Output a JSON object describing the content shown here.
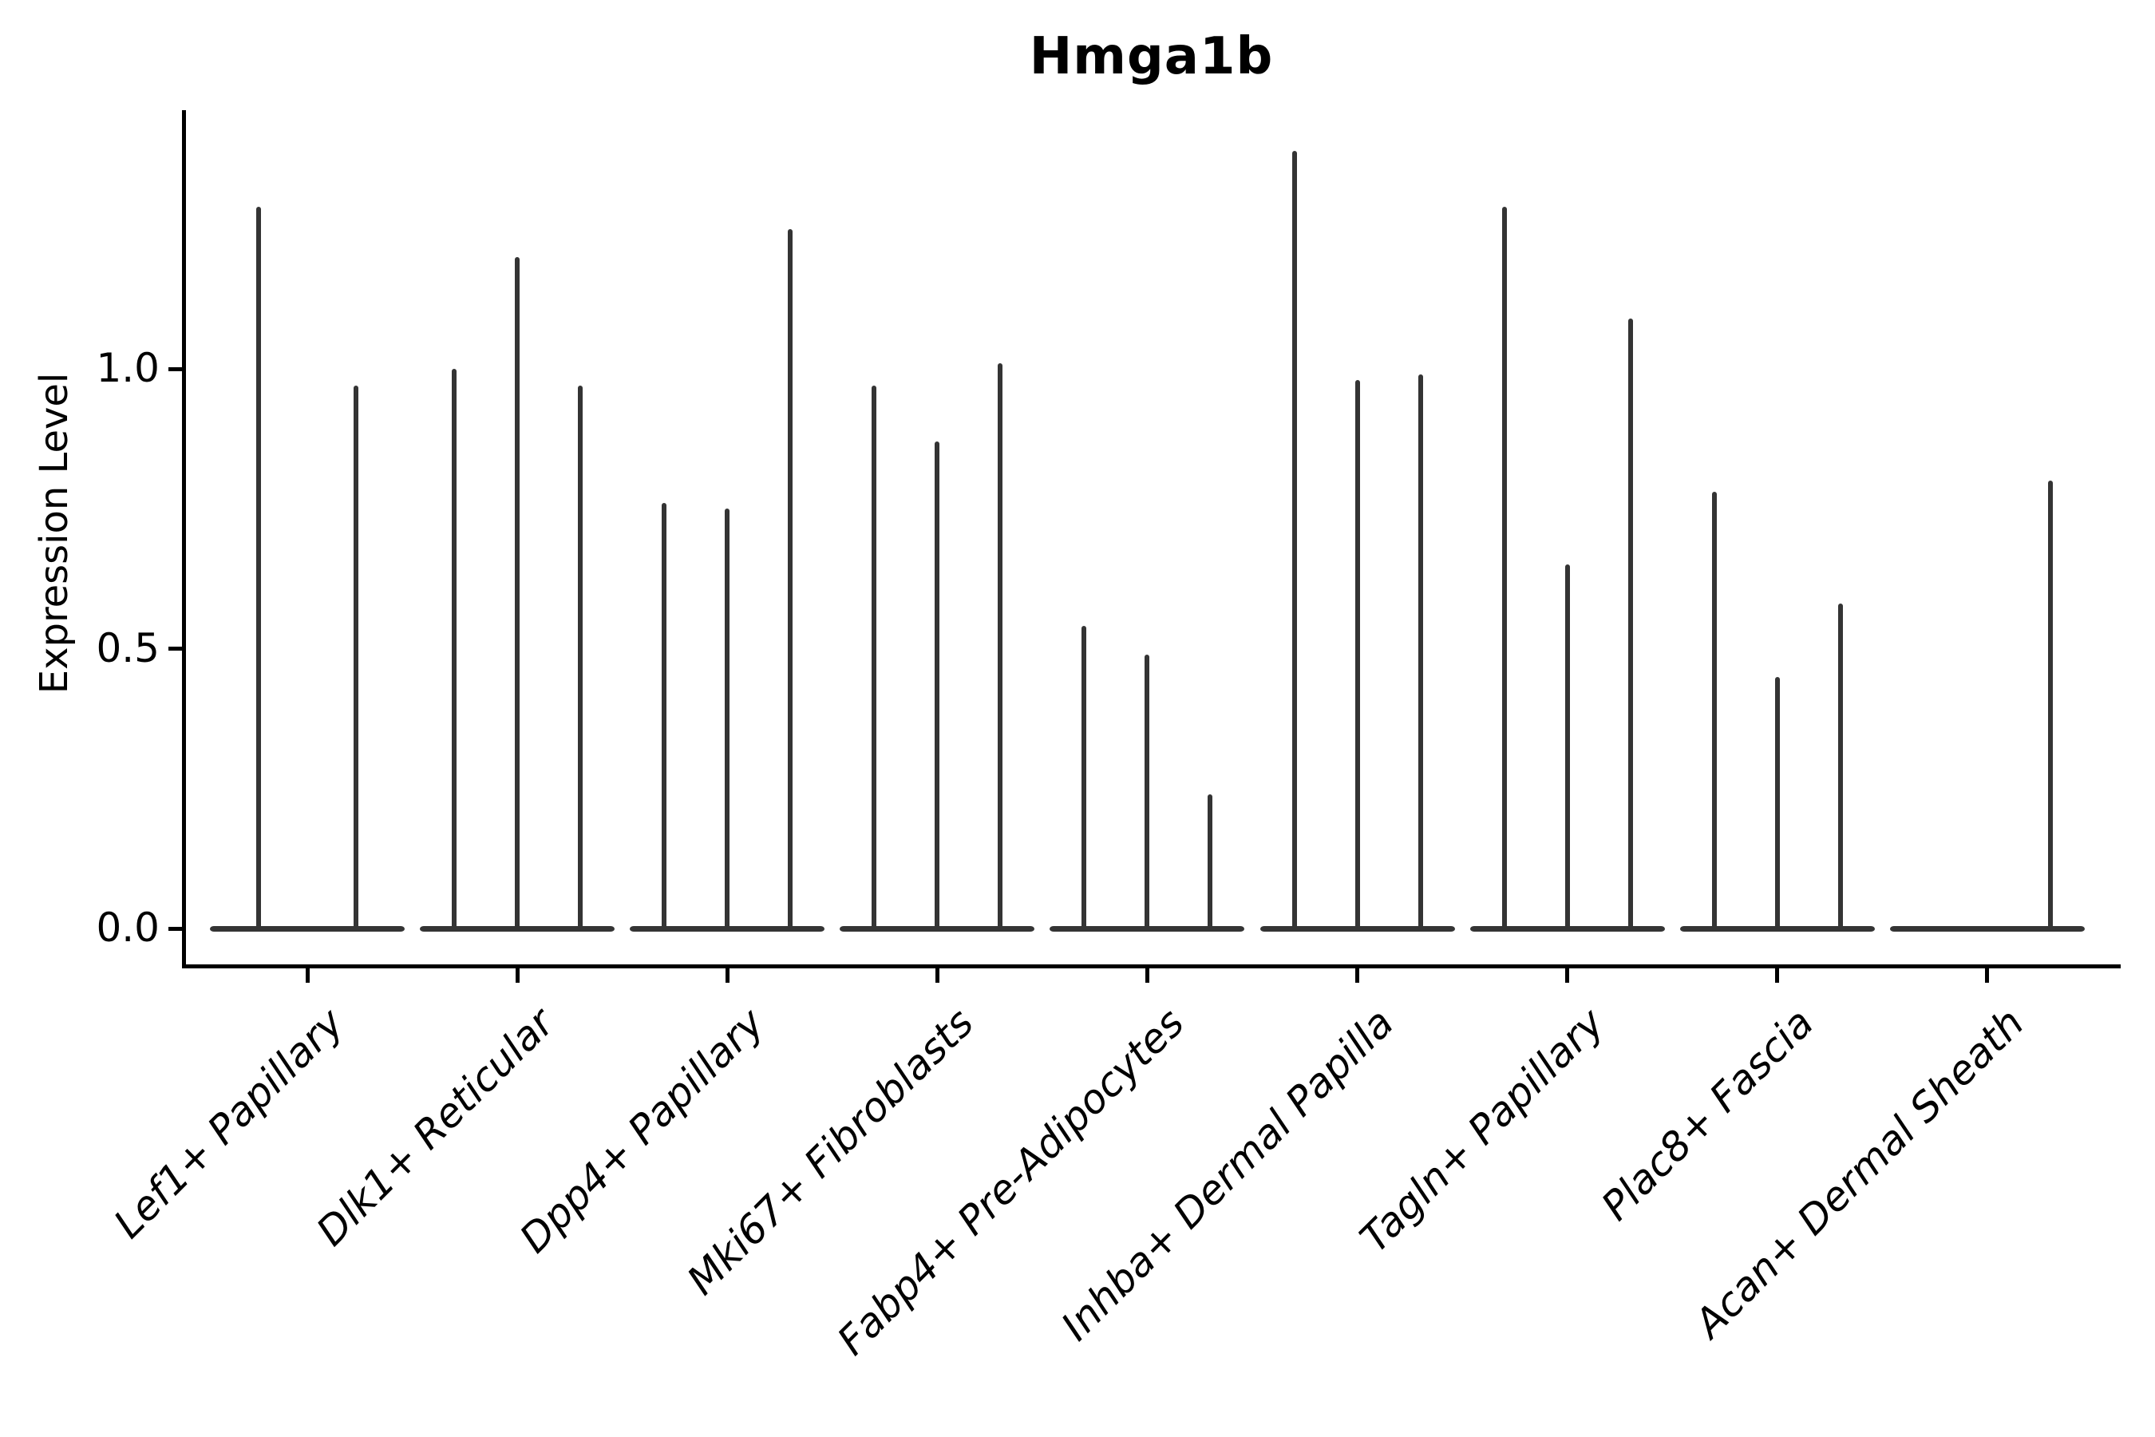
{
  "figure": {
    "background": "#ffffff"
  },
  "chart_data": {
    "type": "violin",
    "title": "Hmga1b",
    "xlabel": "",
    "ylabel": "Expression Level",
    "ylim": [
      -0.06,
      1.46
    ],
    "ytick_values": [
      0.0,
      0.5,
      1.0
    ],
    "ytick_labels": [
      "0.0",
      "0.5",
      "1.0"
    ],
    "grid": false,
    "legend": "none",
    "violin_color": "#343434",
    "axis_color": "#000000",
    "categories": [
      "Lef1+ Papillary",
      "Dlk1+ Reticular",
      "Dpp4+ Papillary",
      "Mki67+ Fibroblasts",
      "Fabp4+ Pre-Adipocytes",
      "Inhba+ Dermal Papilla",
      "Tagln+ Papillary",
      "Plac8+ Fascia",
      "Acan+ Dermal Sheath"
    ],
    "groups": [
      {
        "category": "Lef1+ Papillary",
        "violin_maxima": [
          1.29,
          0.97
        ]
      },
      {
        "category": "Dlk1+ Reticular",
        "violin_maxima": [
          1.0,
          1.2,
          0.97
        ]
      },
      {
        "category": "Dpp4+ Papillary",
        "violin_maxima": [
          0.76,
          0.75,
          1.25
        ]
      },
      {
        "category": "Mki67+ Fibroblasts",
        "violin_maxima": [
          0.97,
          0.87,
          1.01
        ]
      },
      {
        "category": "Fabp4+ Pre-Adipocytes",
        "violin_maxima": [
          0.54,
          0.49,
          0.24
        ]
      },
      {
        "category": "Inhba+ Dermal Papilla",
        "violin_maxima": [
          1.39,
          0.98,
          0.99
        ]
      },
      {
        "category": "Tagln+ Papillary",
        "violin_maxima": [
          1.29,
          0.65,
          1.09
        ]
      },
      {
        "category": "Plac8+ Fascia",
        "violin_maxima": [
          0.78,
          0.45,
          0.58
        ]
      },
      {
        "category": "Acan+ Dermal Sheath",
        "violin_maxima": [
          0.0,
          0.0,
          0.8
        ]
      }
    ]
  }
}
